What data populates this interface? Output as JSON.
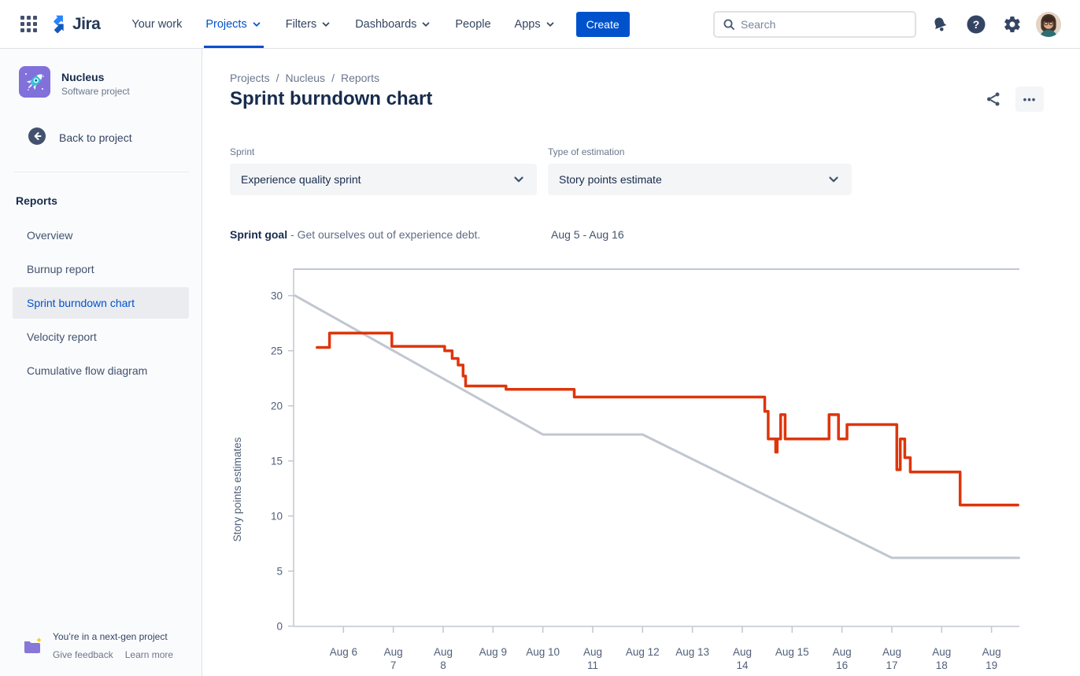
{
  "colors": {
    "accent": "#0052CC",
    "burndown_red": "#DE350B",
    "guideline_gray": "#C1C7D0"
  },
  "navbar": {
    "logo_text": "Jira",
    "nav_items": [
      {
        "label": "Your work"
      },
      {
        "label": "Projects"
      },
      {
        "label": "Filters"
      },
      {
        "label": "Dashboards"
      },
      {
        "label": "People"
      },
      {
        "label": "Apps"
      }
    ],
    "create_label": "Create",
    "search_placeholder": "Search",
    "help_glyph": "?"
  },
  "sidebar": {
    "project_name": "Nucleus",
    "project_type": "Software project",
    "back_label": "Back to project",
    "section_title": "Reports",
    "items": [
      {
        "label": "Overview"
      },
      {
        "label": "Burnup report"
      },
      {
        "label": "Sprint burndown chart"
      },
      {
        "label": "Velocity report"
      },
      {
        "label": "Cumulative flow diagram"
      }
    ],
    "footer": {
      "message": "You’re in a next-gen project",
      "links": [
        "Give feedback",
        "Learn more"
      ]
    }
  },
  "main": {
    "breadcrumb": {
      "items": [
        "Projects",
        "Nucleus",
        "Reports"
      ],
      "separator": "/"
    },
    "title": "Sprint burndown chart",
    "actions": {
      "more_label": "•••"
    },
    "filters": [
      {
        "label": "Sprint",
        "value": "Experience quality sprint"
      },
      {
        "label": "Type of estimation",
        "value": "Story points estimate"
      }
    ],
    "sprint_goal_label": "Sprint goal",
    "sprint_goal_text": "- Get ourselves out of experience debt.",
    "date_range": "Aug 5 - Aug 16"
  },
  "chart_data": {
    "type": "line",
    "ylabel": "Story points estimates",
    "ylim": [
      0,
      30
    ],
    "y_ticks": [
      0,
      5,
      10,
      15,
      20,
      25,
      30
    ],
    "x_unit": "day of August",
    "x_ticks": [
      {
        "day": 6,
        "label": "Aug 6",
        "wrap": false
      },
      {
        "day": 7,
        "label": "Aug 7",
        "wrap": true
      },
      {
        "day": 8,
        "label": "Aug 8",
        "wrap": true
      },
      {
        "day": 9,
        "label": "Aug 9",
        "wrap": false
      },
      {
        "day": 10,
        "label": "Aug 10",
        "wrap": false
      },
      {
        "day": 11,
        "label": "Aug 11",
        "wrap": true
      },
      {
        "day": 12,
        "label": "Aug 12",
        "wrap": false
      },
      {
        "day": 13,
        "label": "Aug 13",
        "wrap": false
      },
      {
        "day": 14,
        "label": "Aug 14",
        "wrap": true
      },
      {
        "day": 15,
        "label": "Aug 15",
        "wrap": false
      },
      {
        "day": 16,
        "label": "Aug 16",
        "wrap": true
      },
      {
        "day": 17,
        "label": "Aug 17",
        "wrap": true
      },
      {
        "day": 18,
        "label": "Aug 18",
        "wrap": true
      },
      {
        "day": 19,
        "label": "Aug 19",
        "wrap": true
      }
    ],
    "legend": "off",
    "grid": "off",
    "series": [
      {
        "name": "Guideline",
        "color": "#C1C7D0",
        "width": 3,
        "points": [
          [
            5.03,
            30
          ],
          [
            10,
            17.4
          ],
          [
            12,
            17.4
          ],
          [
            17,
            6.2
          ],
          [
            19.55,
            6.2
          ]
        ]
      },
      {
        "name": "Remaining work",
        "color": "#DE350B",
        "width": 3.5,
        "points": [
          [
            5.47,
            25.3
          ],
          [
            5.72,
            25.3
          ],
          [
            5.72,
            26.6
          ],
          [
            6.97,
            26.6
          ],
          [
            6.97,
            25.4
          ],
          [
            8.03,
            25.4
          ],
          [
            8.03,
            25
          ],
          [
            8.18,
            25
          ],
          [
            8.18,
            24.3
          ],
          [
            8.3,
            24.3
          ],
          [
            8.3,
            23.7
          ],
          [
            8.4,
            23.7
          ],
          [
            8.4,
            22.7
          ],
          [
            8.45,
            22.7
          ],
          [
            8.45,
            21.8
          ],
          [
            9.26,
            21.8
          ],
          [
            9.26,
            21.5
          ],
          [
            10.63,
            21.5
          ],
          [
            10.63,
            20.8
          ],
          [
            14.45,
            20.8
          ],
          [
            14.45,
            19.5
          ],
          [
            14.52,
            19.5
          ],
          [
            14.52,
            17
          ],
          [
            14.67,
            17
          ],
          [
            14.67,
            15.8
          ],
          [
            14.7,
            15.8
          ],
          [
            14.7,
            17
          ],
          [
            14.77,
            17
          ],
          [
            14.77,
            19.2
          ],
          [
            14.86,
            19.2
          ],
          [
            14.86,
            17
          ],
          [
            15.74,
            17
          ],
          [
            15.74,
            19.2
          ],
          [
            15.93,
            19.2
          ],
          [
            15.93,
            17
          ],
          [
            16.1,
            17
          ],
          [
            16.1,
            18.3
          ],
          [
            17.1,
            18.3
          ],
          [
            17.1,
            14.2
          ],
          [
            17.17,
            14.2
          ],
          [
            17.17,
            17
          ],
          [
            17.26,
            17
          ],
          [
            17.26,
            15.3
          ],
          [
            17.37,
            15.3
          ],
          [
            17.37,
            14
          ],
          [
            18.37,
            14
          ],
          [
            18.37,
            11
          ],
          [
            19.53,
            11
          ]
        ]
      }
    ]
  }
}
